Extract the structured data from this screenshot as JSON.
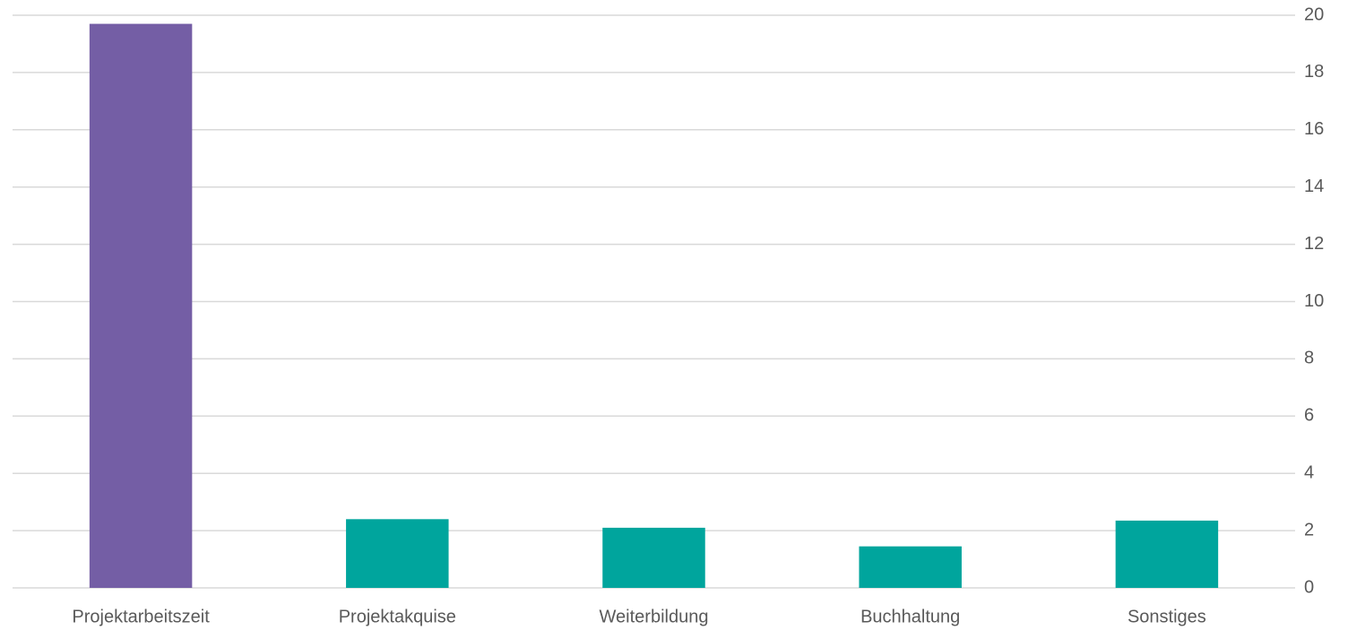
{
  "chart_data": {
    "type": "bar",
    "categories": [
      "Projektarbeitszeit",
      "Projektakquise",
      "Weiterbildung",
      "Buchhaltung",
      "Sonstiges"
    ],
    "values": [
      19.7,
      2.4,
      2.1,
      1.45,
      2.35
    ],
    "colors": [
      "#745ea5",
      "#00a59d",
      "#00a59d",
      "#00a59d",
      "#00a59d"
    ],
    "ylim": [
      0,
      20
    ],
    "yticks": [
      0,
      2,
      4,
      6,
      8,
      10,
      12,
      14,
      16,
      18,
      20
    ],
    "grid": true,
    "yaxis_side": "right"
  }
}
